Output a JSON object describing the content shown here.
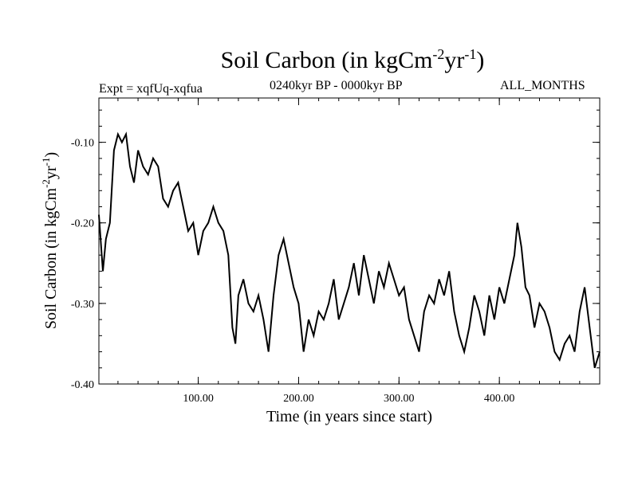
{
  "chart_data": {
    "type": "line",
    "title_main": "Soil Carbon (in kgCm",
    "title_sup1": "-2",
    "title_mid": "yr",
    "title_sup2": "-1",
    "title_end": ")",
    "subtitle_left": "Expt = xqfUq-xqfua",
    "subtitle_mid": "0240kyr BP - 0000kyr BP",
    "subtitle_right": "ALL_MONTHS",
    "xlabel": "Time (in years since start)",
    "ylabel_main": "Soil Carbon (in kgCm",
    "ylabel_sup1": "-2",
    "ylabel_mid": "yr",
    "ylabel_sup2": "-1",
    "ylabel_end": ")",
    "xlim": [
      1,
      500
    ],
    "ylim": [
      -0.4,
      -0.045
    ],
    "x_ticks": [
      100,
      200,
      300,
      400
    ],
    "x_tick_labels": [
      "100.00",
      "200.00",
      "300.00",
      "400.00"
    ],
    "y_ticks": [
      -0.1,
      -0.2,
      -0.3,
      -0.4
    ],
    "y_tick_labels": [
      "-0.10",
      "-0.20",
      "-0.30",
      "-0.40"
    ],
    "grid": false,
    "series": [
      {
        "name": "Soil Carbon",
        "color": "#000000",
        "x": [
          1,
          5,
          8,
          12,
          16,
          20,
          24,
          28,
          32,
          36,
          40,
          45,
          50,
          55,
          60,
          65,
          70,
          75,
          80,
          85,
          90,
          95,
          100,
          105,
          110,
          115,
          120,
          125,
          130,
          134,
          137,
          140,
          145,
          150,
          155,
          160,
          165,
          170,
          175,
          180,
          185,
          190,
          195,
          200,
          205,
          210,
          215,
          220,
          225,
          230,
          235,
          240,
          245,
          250,
          255,
          260,
          265,
          270,
          275,
          280,
          285,
          290,
          295,
          300,
          305,
          310,
          315,
          320,
          325,
          330,
          335,
          340,
          345,
          350,
          355,
          360,
          365,
          370,
          375,
          380,
          385,
          390,
          395,
          400,
          405,
          410,
          415,
          418,
          422,
          426,
          430,
          435,
          440,
          445,
          450,
          455,
          460,
          465,
          470,
          475,
          480,
          485,
          490,
          495,
          500
        ],
        "y": [
          -0.19,
          -0.26,
          -0.22,
          -0.2,
          -0.11,
          -0.09,
          -0.1,
          -0.09,
          -0.13,
          -0.15,
          -0.11,
          -0.13,
          -0.14,
          -0.12,
          -0.13,
          -0.17,
          -0.18,
          -0.16,
          -0.15,
          -0.18,
          -0.21,
          -0.2,
          -0.24,
          -0.21,
          -0.2,
          -0.18,
          -0.2,
          -0.21,
          -0.24,
          -0.33,
          -0.35,
          -0.29,
          -0.27,
          -0.3,
          -0.31,
          -0.29,
          -0.32,
          -0.36,
          -0.29,
          -0.24,
          -0.22,
          -0.25,
          -0.28,
          -0.3,
          -0.36,
          -0.32,
          -0.34,
          -0.31,
          -0.32,
          -0.3,
          -0.27,
          -0.32,
          -0.3,
          -0.28,
          -0.25,
          -0.29,
          -0.24,
          -0.27,
          -0.3,
          -0.26,
          -0.28,
          -0.25,
          -0.27,
          -0.29,
          -0.28,
          -0.32,
          -0.34,
          -0.36,
          -0.31,
          -0.29,
          -0.3,
          -0.27,
          -0.29,
          -0.26,
          -0.31,
          -0.34,
          -0.36,
          -0.33,
          -0.29,
          -0.31,
          -0.34,
          -0.29,
          -0.32,
          -0.28,
          -0.3,
          -0.27,
          -0.24,
          -0.2,
          -0.23,
          -0.28,
          -0.29,
          -0.33,
          -0.3,
          -0.31,
          -0.33,
          -0.36,
          -0.37,
          -0.35,
          -0.34,
          -0.36,
          -0.31,
          -0.28,
          -0.33,
          -0.38,
          -0.36
        ]
      }
    ]
  }
}
